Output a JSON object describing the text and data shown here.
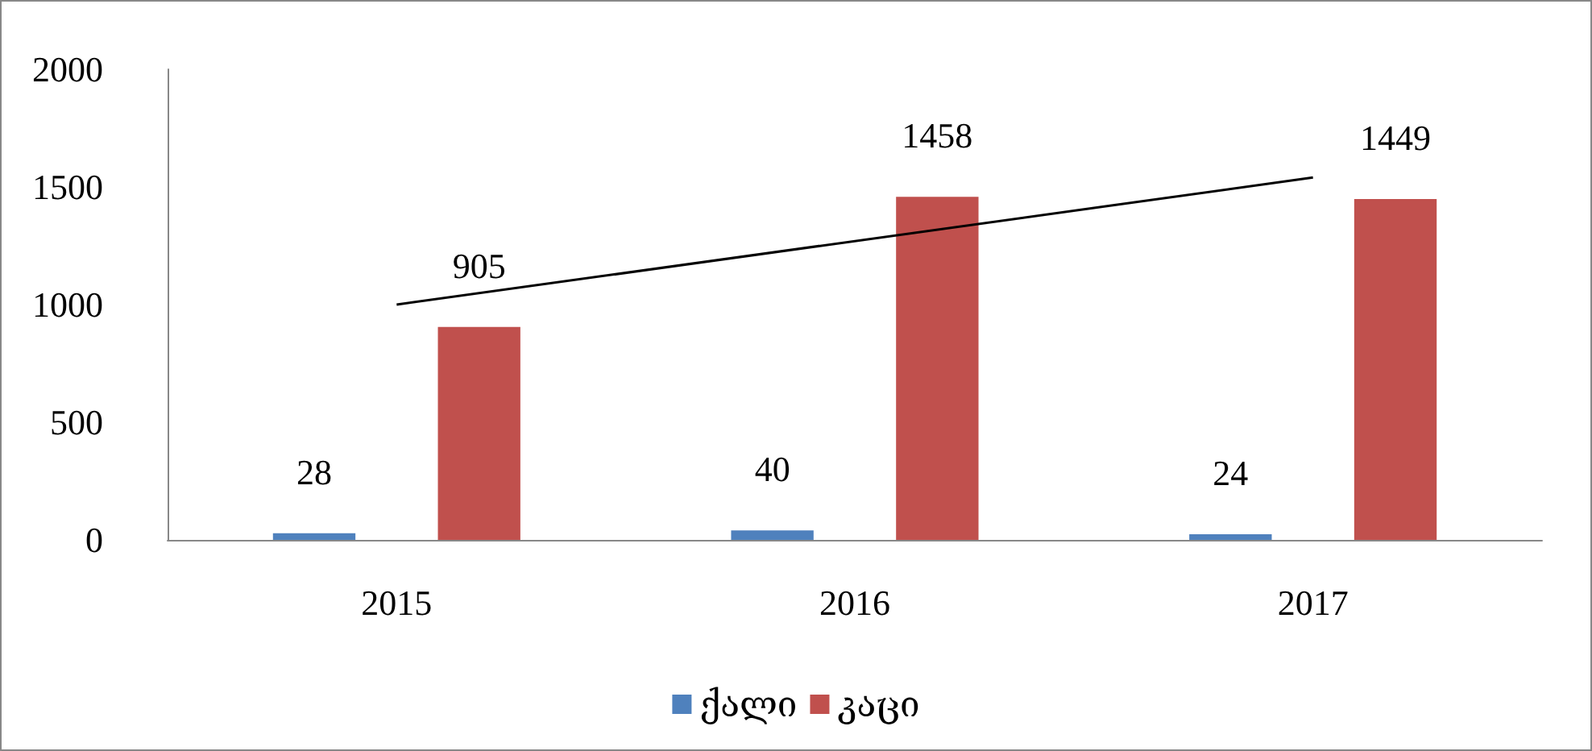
{
  "chart_data": {
    "type": "bar",
    "categories": [
      "2015",
      "2016",
      "2017"
    ],
    "series": [
      {
        "name": "ქალი",
        "color": "#4f81bd",
        "values": [
          28,
          40,
          24
        ],
        "value_labels": [
          "28",
          "40",
          "24"
        ]
      },
      {
        "name": "კაცი",
        "color": "#c0504d",
        "values": [
          905,
          1458,
          1449
        ],
        "value_labels": [
          "905",
          "1458",
          "1449"
        ]
      },
      {
        "type": "line",
        "color": "#000000",
        "values": [
          1000,
          null,
          1540
        ],
        "marker": "none"
      }
    ],
    "ylim": [
      0,
      2000
    ],
    "yticks": [
      0,
      500,
      1000,
      1500,
      2000
    ],
    "grid": false,
    "legend": "bottom"
  }
}
